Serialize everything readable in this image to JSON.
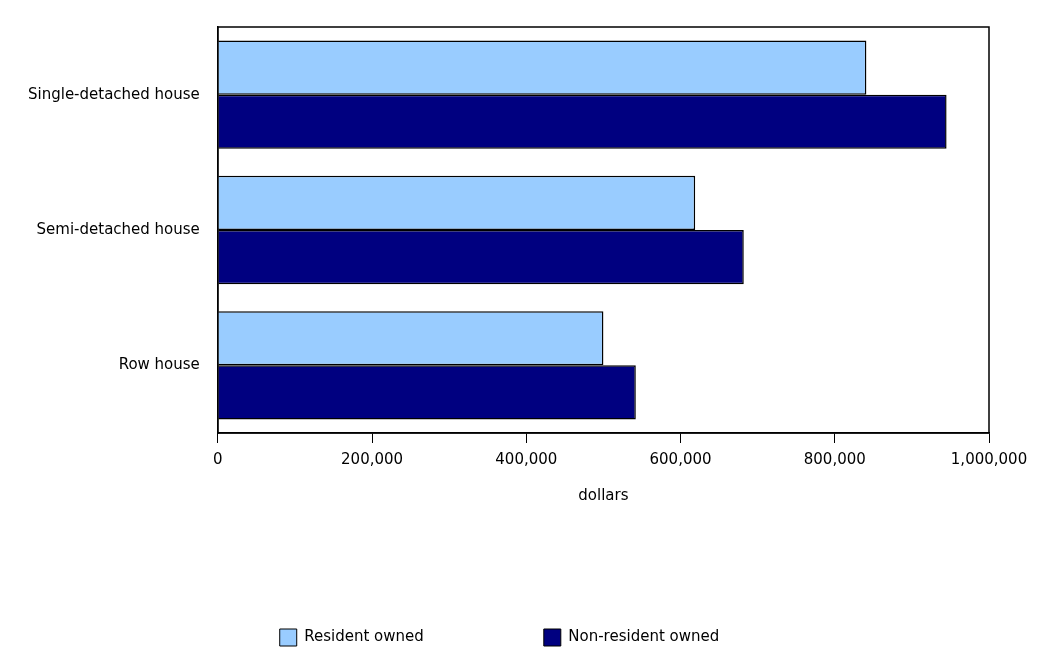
{
  "chart_data": {
    "type": "bar",
    "orientation": "horizontal",
    "xlabel": "dollars",
    "categories": [
      "Single-detached house",
      "Semi-detached house",
      "Row house"
    ],
    "series": [
      {
        "name": "Resident owned",
        "color": "#99ccff",
        "values": [
          841000,
          619000,
          500000
        ]
      },
      {
        "name": "Non-resident owned",
        "color": "#000080",
        "values": [
          945000,
          682000,
          542000
        ]
      }
    ],
    "xlim": [
      0,
      1000000
    ],
    "xticks": [
      {
        "value": 0,
        "label": "0"
      },
      {
        "value": 200000,
        "label": "200,000"
      },
      {
        "value": 400000,
        "label": "400,000"
      },
      {
        "value": 600000,
        "label": "600,000"
      },
      {
        "value": 800000,
        "label": "800,000"
      },
      {
        "value": 1000000,
        "label": "1,000,000"
      }
    ],
    "grid": false,
    "legend": "bottom"
  }
}
